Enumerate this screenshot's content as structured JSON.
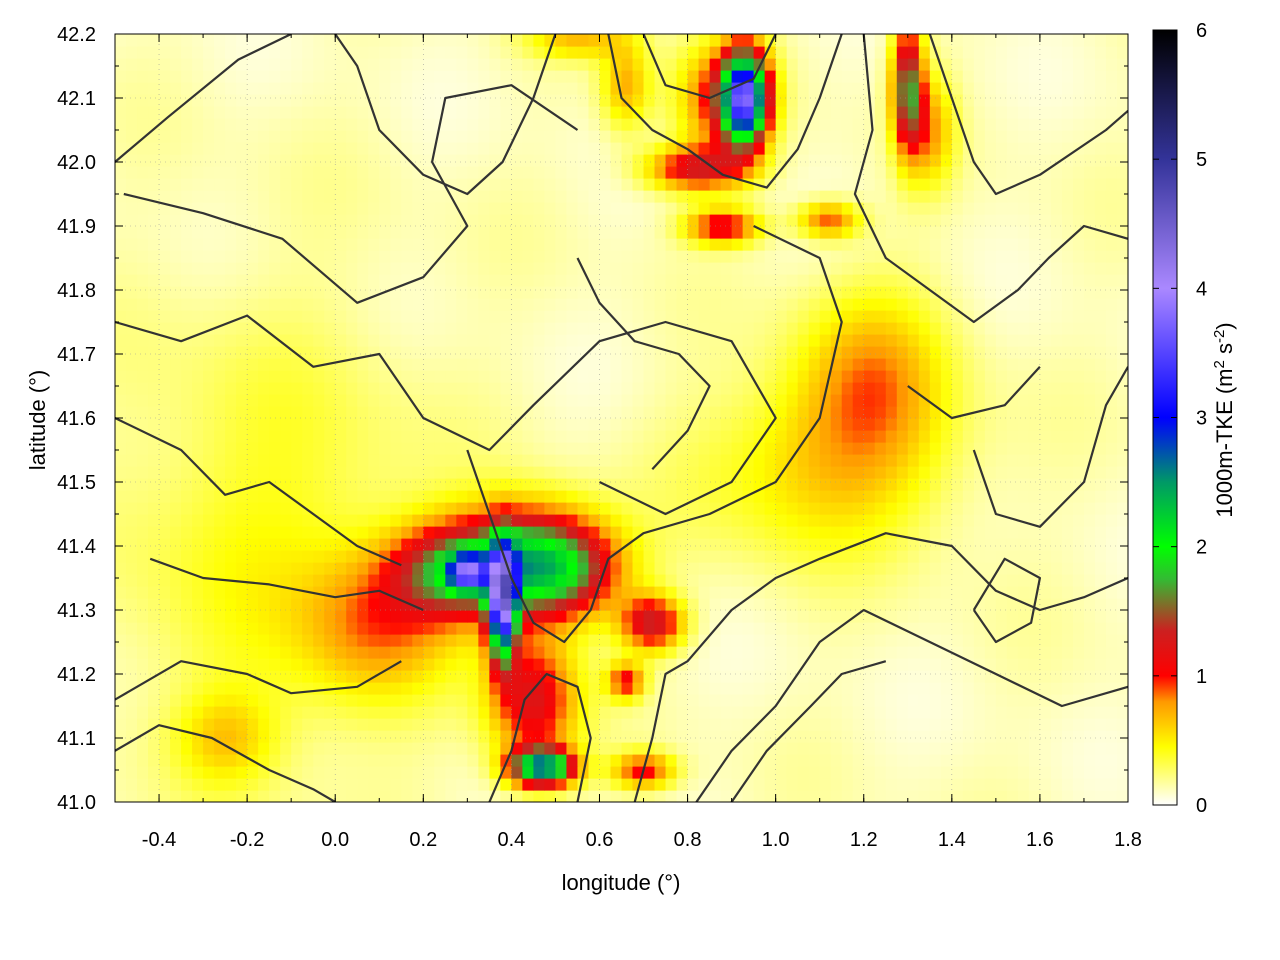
{
  "chart_data": {
    "type": "heatmap",
    "xlabel": "longitude (°)",
    "ylabel": "latitude (°)",
    "xlim": [
      -0.5,
      1.8
    ],
    "ylim": [
      41.0,
      42.2
    ],
    "x_ticks": [
      "-0.4",
      "-0.2",
      "0.0",
      "0.2",
      "0.4",
      "0.6",
      "0.8",
      "1.0",
      "1.2",
      "1.4",
      "1.6",
      "1.8"
    ],
    "x_tick_values": [
      -0.4,
      -0.2,
      0.0,
      0.2,
      0.4,
      0.6,
      0.8,
      1.0,
      1.2,
      1.4,
      1.6,
      1.8
    ],
    "y_ticks": [
      "41.0",
      "41.1",
      "41.2",
      "41.3",
      "41.4",
      "41.5",
      "41.6",
      "41.7",
      "41.8",
      "41.9",
      "42.0",
      "42.1",
      "42.2"
    ],
    "y_tick_values": [
      41.0,
      41.1,
      41.2,
      41.3,
      41.4,
      41.5,
      41.6,
      41.7,
      41.8,
      41.9,
      42.0,
      42.1,
      42.2
    ],
    "grid": true,
    "colorbar": {
      "label": "1000m-TKE (m² s⁻²)",
      "label_main": "1000m-TKE (m",
      "label_sup1": "2",
      "label_mid": " s",
      "label_sup2": "-2",
      "label_end": ")",
      "range": [
        0,
        6
      ],
      "ticks": [
        "0",
        "1",
        "2",
        "3",
        "4",
        "5",
        "6"
      ],
      "tick_values": [
        0,
        1,
        2,
        3,
        4,
        5,
        6
      ],
      "colors": [
        {
          "value": 0.0,
          "color": "#ffffff"
        },
        {
          "value": 0.45,
          "color": "#ffff00"
        },
        {
          "value": 0.8,
          "color": "#ff9900"
        },
        {
          "value": 1.0,
          "color": "#ff0000"
        },
        {
          "value": 1.35,
          "color": "#cc2020"
        },
        {
          "value": 1.75,
          "color": "#33bb33"
        },
        {
          "value": 2.0,
          "color": "#00ff00"
        },
        {
          "value": 2.5,
          "color": "#009966"
        },
        {
          "value": 3.0,
          "color": "#0000ff"
        },
        {
          "value": 4.0,
          "color": "#aa88ff"
        },
        {
          "value": 5.0,
          "color": "#333399"
        },
        {
          "value": 6.0,
          "color": "#000000"
        }
      ]
    },
    "hotspots": [
      {
        "lon": 0.38,
        "lat": 41.31,
        "tke": 3.2,
        "slon": 0.022,
        "slat": 0.06
      },
      {
        "lon": 0.43,
        "lat": 41.38,
        "tke": 1.4,
        "slon": 0.12,
        "slat": 0.06
      },
      {
        "lon": 0.25,
        "lat": 41.36,
        "tke": 1.1,
        "slon": 0.09,
        "slat": 0.05
      },
      {
        "lon": 0.3,
        "lat": 41.36,
        "tke": 2.0,
        "slon": 0.03,
        "slat": 0.02
      },
      {
        "lon": 0.5,
        "lat": 41.36,
        "tke": 1.1,
        "slon": 0.1,
        "slat": 0.05
      },
      {
        "lon": 0.45,
        "lat": 41.16,
        "tke": 1.1,
        "slon": 0.07,
        "slat": 0.07
      },
      {
        "lon": 0.47,
        "lat": 41.055,
        "tke": 2.4,
        "slon": 0.05,
        "slat": 0.02
      },
      {
        "lon": 0.1,
        "lat": 41.28,
        "tke": 0.6,
        "slon": 0.12,
        "slat": 0.08
      },
      {
        "lon": 0.72,
        "lat": 41.28,
        "tke": 1.2,
        "slon": 0.05,
        "slat": 0.03
      },
      {
        "lon": 0.66,
        "lat": 41.19,
        "tke": 0.9,
        "slon": 0.03,
        "slat": 0.02
      },
      {
        "lon": 0.7,
        "lat": 41.05,
        "tke": 0.9,
        "slon": 0.05,
        "slat": 0.02
      },
      {
        "lon": 0.93,
        "lat": 42.1,
        "tke": 3.0,
        "slon": 0.035,
        "slat": 0.05
      },
      {
        "lon": 0.88,
        "lat": 42.1,
        "tke": 0.9,
        "slon": 0.07,
        "slat": 0.06
      },
      {
        "lon": 1.3,
        "lat": 42.12,
        "tke": 1.5,
        "slon": 0.025,
        "slat": 0.07
      },
      {
        "lon": 0.82,
        "lat": 41.99,
        "tke": 1.1,
        "slon": 0.08,
        "slat": 0.025
      },
      {
        "lon": 0.88,
        "lat": 41.9,
        "tke": 1.0,
        "slon": 0.06,
        "slat": 0.02
      },
      {
        "lon": 1.12,
        "lat": 41.91,
        "tke": 0.8,
        "slon": 0.05,
        "slat": 0.02
      },
      {
        "lon": 1.22,
        "lat": 41.66,
        "tke": 0.6,
        "slon": 0.12,
        "slat": 0.1
      },
      {
        "lon": 1.1,
        "lat": 41.52,
        "tke": 0.45,
        "slon": 0.2,
        "slat": 0.1
      },
      {
        "lon": -0.15,
        "lat": 41.4,
        "tke": 0.3,
        "slon": 0.25,
        "slat": 0.25
      },
      {
        "lon": -0.25,
        "lat": 41.1,
        "tke": 0.4,
        "slon": 0.08,
        "slat": 0.05
      },
      {
        "lon": 0.55,
        "lat": 42.19,
        "tke": 0.5,
        "slon": 0.08,
        "slat": 0.02
      },
      {
        "lon": 0.66,
        "lat": 42.12,
        "tke": 0.6,
        "slon": 0.04,
        "slat": 0.05
      },
      {
        "lon": 1.35,
        "lat": 42.05,
        "tke": 0.6,
        "slon": 0.04,
        "slat": 0.06
      }
    ],
    "contours": [
      [
        [
          -0.5,
          42.0
        ],
        [
          -0.38,
          42.07
        ],
        [
          -0.22,
          42.16
        ],
        [
          -0.1,
          42.2
        ]
      ],
      [
        [
          -0.48,
          41.95
        ],
        [
          -0.3,
          41.92
        ],
        [
          -0.12,
          41.88
        ],
        [
          0.05,
          41.78
        ],
        [
          0.2,
          41.82
        ],
        [
          0.3,
          41.9
        ],
        [
          0.22,
          42.0
        ],
        [
          0.25,
          42.1
        ],
        [
          0.4,
          42.12
        ],
        [
          0.55,
          42.05
        ]
      ],
      [
        [
          -0.5,
          41.75
        ],
        [
          -0.35,
          41.72
        ],
        [
          -0.2,
          41.76
        ],
        [
          -0.05,
          41.68
        ],
        [
          0.1,
          41.7
        ],
        [
          0.2,
          41.6
        ],
        [
          0.35,
          41.55
        ],
        [
          0.45,
          41.62
        ],
        [
          0.6,
          41.72
        ],
        [
          0.75,
          41.75
        ],
        [
          0.9,
          41.72
        ],
        [
          1.0,
          41.6
        ],
        [
          0.9,
          41.5
        ],
        [
          0.75,
          41.45
        ],
        [
          0.6,
          41.5
        ]
      ],
      [
        [
          -0.5,
          41.6
        ],
        [
          -0.35,
          41.55
        ],
        [
          -0.25,
          41.48
        ],
        [
          -0.15,
          41.5
        ],
        [
          -0.05,
          41.45
        ],
        [
          0.05,
          41.4
        ],
        [
          0.15,
          41.37
        ]
      ],
      [
        [
          -0.42,
          41.38
        ],
        [
          -0.3,
          41.35
        ],
        [
          -0.15,
          41.34
        ],
        [
          0.0,
          41.32
        ],
        [
          0.1,
          41.33
        ],
        [
          0.2,
          41.3
        ]
      ],
      [
        [
          -0.5,
          41.16
        ],
        [
          -0.35,
          41.22
        ],
        [
          -0.2,
          41.2
        ],
        [
          -0.1,
          41.17
        ],
        [
          0.05,
          41.18
        ],
        [
          0.15,
          41.22
        ]
      ],
      [
        [
          -0.5,
          41.08
        ],
        [
          -0.4,
          41.12
        ],
        [
          -0.28,
          41.1
        ],
        [
          -0.15,
          41.05
        ],
        [
          -0.05,
          41.02
        ],
        [
          0.0,
          41.0
        ]
      ],
      [
        [
          0.3,
          41.55
        ],
        [
          0.35,
          41.45
        ],
        [
          0.4,
          41.35
        ],
        [
          0.45,
          41.28
        ],
        [
          0.52,
          41.25
        ],
        [
          0.58,
          41.3
        ],
        [
          0.62,
          41.38
        ],
        [
          0.7,
          41.42
        ],
        [
          0.85,
          41.45
        ],
        [
          1.0,
          41.5
        ],
        [
          1.1,
          41.6
        ],
        [
          1.15,
          41.75
        ],
        [
          1.1,
          41.85
        ],
        [
          0.95,
          41.9
        ]
      ],
      [
        [
          0.35,
          41.0
        ],
        [
          0.4,
          41.08
        ],
        [
          0.43,
          41.16
        ],
        [
          0.48,
          41.2
        ],
        [
          0.55,
          41.18
        ],
        [
          0.58,
          41.1
        ],
        [
          0.55,
          41.0
        ]
      ],
      [
        [
          0.68,
          41.0
        ],
        [
          0.72,
          41.1
        ],
        [
          0.75,
          41.2
        ],
        [
          0.8,
          41.22
        ],
        [
          0.9,
          41.3
        ],
        [
          1.0,
          41.35
        ],
        [
          1.1,
          41.38
        ],
        [
          1.25,
          41.42
        ],
        [
          1.4,
          41.4
        ],
        [
          1.5,
          41.33
        ],
        [
          1.6,
          41.3
        ],
        [
          1.7,
          41.32
        ],
        [
          1.8,
          41.35
        ]
      ],
      [
        [
          0.82,
          41.0
        ],
        [
          0.9,
          41.08
        ],
        [
          1.0,
          41.15
        ],
        [
          1.1,
          41.25
        ],
        [
          1.2,
          41.3
        ],
        [
          1.35,
          41.25
        ],
        [
          1.5,
          41.2
        ],
        [
          1.65,
          41.15
        ],
        [
          1.8,
          41.18
        ]
      ],
      [
        [
          0.9,
          41.0
        ],
        [
          0.98,
          41.08
        ],
        [
          1.08,
          41.15
        ],
        [
          1.15,
          41.2
        ],
        [
          1.25,
          41.22
        ]
      ],
      [
        [
          0.62,
          42.2
        ],
        [
          0.65,
          42.1
        ],
        [
          0.72,
          42.05
        ],
        [
          0.8,
          42.02
        ],
        [
          0.88,
          41.98
        ],
        [
          0.98,
          41.96
        ],
        [
          1.05,
          42.02
        ],
        [
          1.1,
          42.1
        ],
        [
          1.15,
          42.2
        ]
      ],
      [
        [
          0.7,
          42.2
        ],
        [
          0.75,
          42.12
        ],
        [
          0.85,
          42.1
        ],
        [
          0.95,
          42.13
        ],
        [
          1.0,
          42.2
        ]
      ],
      [
        [
          1.2,
          42.2
        ],
        [
          1.22,
          42.05
        ],
        [
          1.18,
          41.95
        ],
        [
          1.25,
          41.85
        ],
        [
          1.35,
          41.8
        ],
        [
          1.45,
          41.75
        ],
        [
          1.55,
          41.8
        ],
        [
          1.62,
          41.85
        ],
        [
          1.7,
          41.9
        ],
        [
          1.8,
          41.88
        ]
      ],
      [
        [
          1.35,
          42.2
        ],
        [
          1.4,
          42.1
        ],
        [
          1.45,
          42.0
        ],
        [
          1.5,
          41.95
        ],
        [
          1.6,
          41.98
        ],
        [
          1.75,
          42.05
        ],
        [
          1.8,
          42.08
        ]
      ],
      [
        [
          1.45,
          41.55
        ],
        [
          1.5,
          41.45
        ],
        [
          1.6,
          41.43
        ],
        [
          1.7,
          41.5
        ],
        [
          1.75,
          41.62
        ],
        [
          1.8,
          41.68
        ]
      ],
      [
        [
          0.5,
          42.2
        ],
        [
          0.45,
          42.1
        ],
        [
          0.38,
          42.0
        ],
        [
          0.3,
          41.95
        ],
        [
          0.2,
          41.98
        ],
        [
          0.1,
          42.05
        ],
        [
          0.05,
          42.15
        ],
        [
          0.0,
          42.2
        ]
      ],
      [
        [
          0.55,
          41.85
        ],
        [
          0.6,
          41.78
        ],
        [
          0.68,
          41.72
        ],
        [
          0.78,
          41.7
        ],
        [
          0.85,
          41.65
        ],
        [
          0.8,
          41.58
        ],
        [
          0.72,
          41.52
        ]
      ],
      [
        [
          1.3,
          41.65
        ],
        [
          1.4,
          41.6
        ],
        [
          1.52,
          41.62
        ],
        [
          1.6,
          41.68
        ]
      ],
      [
        [
          1.45,
          41.3
        ],
        [
          1.5,
          41.25
        ],
        [
          1.58,
          41.28
        ],
        [
          1.6,
          41.35
        ],
        [
          1.52,
          41.38
        ],
        [
          1.45,
          41.3
        ]
      ]
    ]
  }
}
